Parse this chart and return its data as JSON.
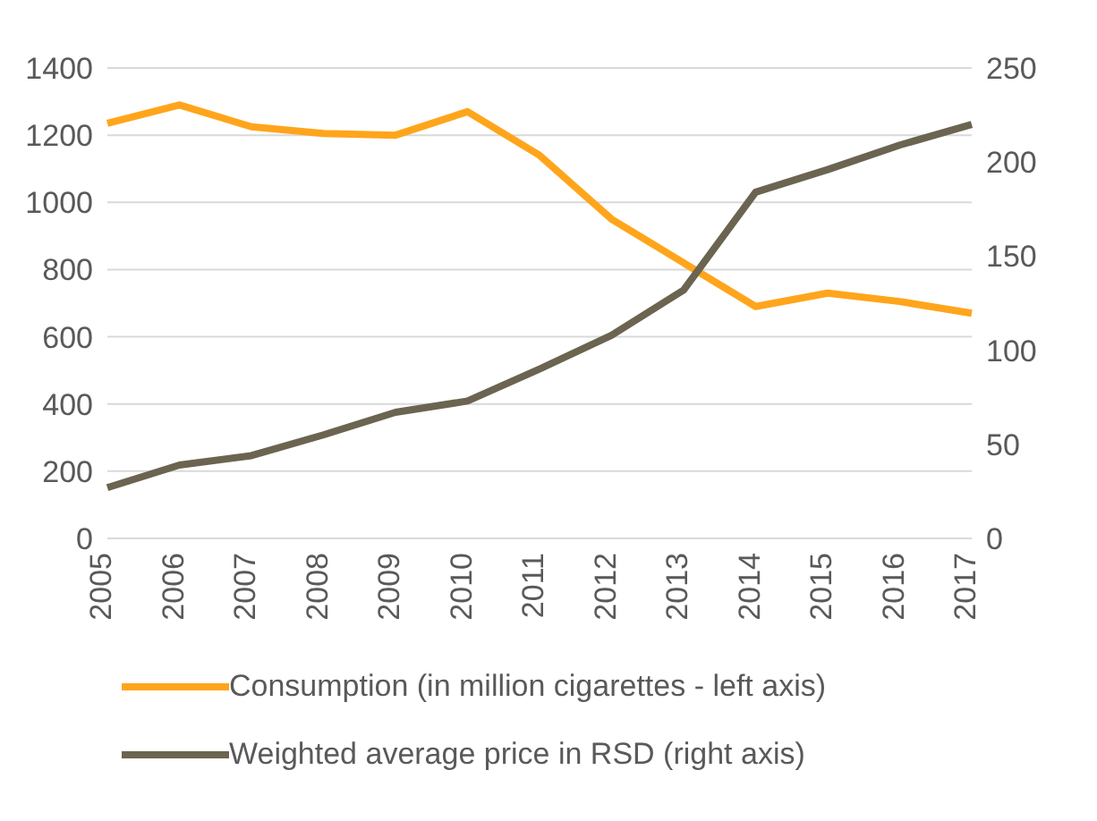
{
  "chart_data": {
    "type": "line",
    "categories": [
      "2005",
      "2006",
      "2007",
      "2008",
      "2009",
      "2010",
      "2011",
      "2012",
      "2013",
      "2014",
      "2015",
      "2016",
      "2017"
    ],
    "series": [
      {
        "name": "Consumption (in million cigarettes - left axis)",
        "color": "#ffa51c",
        "values": [
          1235,
          1290,
          1225,
          1205,
          1200,
          1270,
          1140,
          950,
          820,
          690,
          730,
          705,
          670
        ]
      },
      {
        "name": "Weighted average price in RSD (right axis)",
        "color": "#6b6450",
        "axis": "y2",
        "values": [
          27,
          39,
          44,
          55,
          67,
          73,
          90,
          108,
          132,
          184,
          196,
          209,
          220
        ]
      }
    ],
    "ylim": [
      0,
      1400
    ],
    "yticks": [
      0,
      200,
      400,
      600,
      800,
      1000,
      1200,
      1400
    ],
    "y2lim": [
      0,
      250
    ],
    "y2ticks": [
      0,
      50,
      100,
      150,
      200,
      250
    ],
    "grid": "y",
    "legend": "bottom",
    "marker": "none",
    "line_style": "solid"
  }
}
